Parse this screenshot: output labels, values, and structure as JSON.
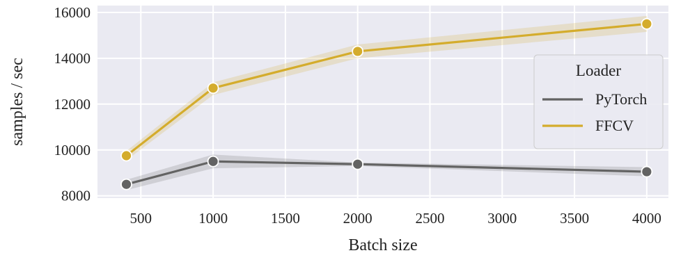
{
  "chart_data": {
    "type": "line",
    "xlabel": "Batch size",
    "ylabel": "samples / sec",
    "xlim": [
      200,
      4150
    ],
    "ylim": [
      7900,
      16300
    ],
    "xticks": [
      500,
      1000,
      1500,
      2000,
      2500,
      3000,
      3500,
      4000
    ],
    "yticks": [
      8000,
      10000,
      12000,
      14000,
      16000
    ],
    "grid": true,
    "background": "#eaeaf2",
    "legend": {
      "title": "Loader",
      "placement": "right"
    },
    "series": [
      {
        "name": "PyTorch",
        "color": "#636363",
        "x": [
          400,
          1000,
          2000,
          4000
        ],
        "y": [
          8500,
          9500,
          9380,
          9050
        ],
        "ci_low": [
          8250,
          9200,
          9300,
          8850
        ],
        "ci_high": [
          8700,
          9800,
          9450,
          9250
        ]
      },
      {
        "name": "FFCV",
        "color": "#d4ac2c",
        "x": [
          400,
          1000,
          2000,
          4000
        ],
        "y": [
          9750,
          12700,
          14300,
          15500
        ],
        "ci_low": [
          9550,
          12400,
          14000,
          15150
        ],
        "ci_high": [
          9950,
          12950,
          14600,
          15850
        ]
      }
    ]
  }
}
